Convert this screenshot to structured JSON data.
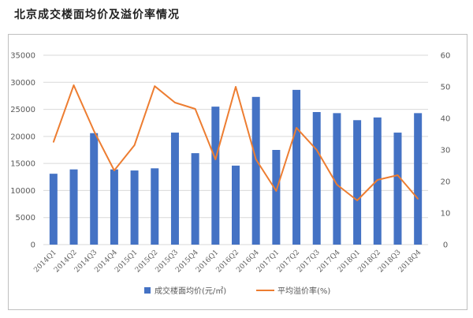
{
  "title": "北京成交楼面均价及溢价率情况",
  "chart_data": {
    "type": "bar+line",
    "categories": [
      "2014Q1",
      "2014Q2",
      "2014Q3",
      "2014Q4",
      "2015Q1",
      "2015Q2",
      "2015Q3",
      "2015Q4",
      "2016Q1",
      "2016Q2",
      "2016Q4",
      "2017Q1",
      "2017Q2",
      "2017Q3",
      "2017Q4",
      "2018Q1",
      "2018Q2",
      "2018Q3",
      "2018Q4"
    ],
    "series": [
      {
        "name": "成交楼面均价(元/㎡)",
        "type": "bar",
        "axis": "left",
        "color": "#4472c4",
        "values": [
          13100,
          13900,
          20600,
          13900,
          13700,
          14100,
          20700,
          16900,
          25500,
          14600,
          27300,
          17500,
          28600,
          24500,
          24300,
          23000,
          23500,
          20700,
          24300
        ]
      },
      {
        "name": "平均溢价率(%)",
        "type": "line",
        "axis": "right",
        "color": "#ed7d31",
        "values": [
          32.5,
          50.5,
          36,
          23.5,
          31.5,
          50.2,
          45,
          43,
          27,
          50,
          27,
          17,
          37,
          30,
          19,
          14,
          20.5,
          22,
          14.5
        ]
      }
    ],
    "y_left": {
      "min": 0,
      "max": 35000,
      "ticks": [
        "0",
        "5000",
        "10000",
        "15000",
        "20000",
        "25000",
        "30000",
        "35000"
      ]
    },
    "y_right": {
      "min": 0,
      "max": 60,
      "ticks": [
        "0",
        "10",
        "20",
        "30",
        "40",
        "50",
        "60"
      ]
    },
    "legend_position": "bottom"
  }
}
